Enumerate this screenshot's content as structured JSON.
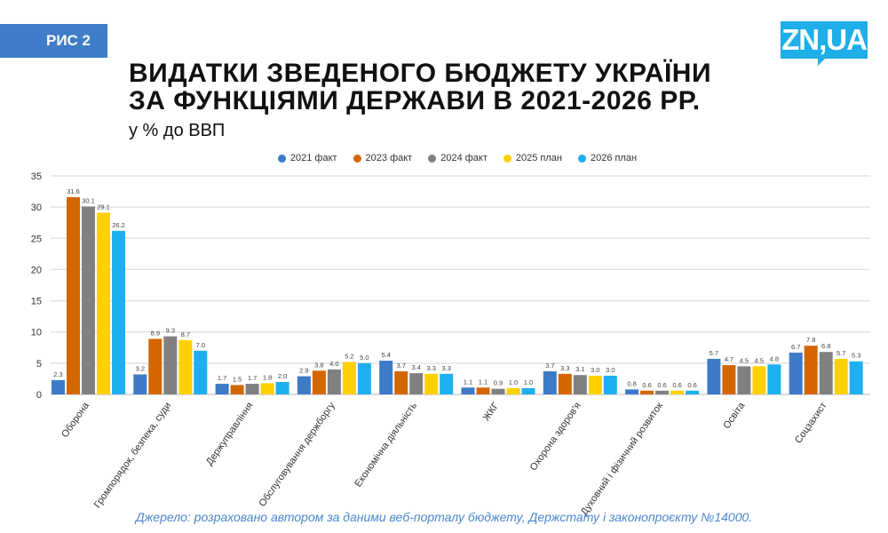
{
  "badge": "РИС 2",
  "logo": "ZN,UA",
  "title_line1": "ВИДАТКИ ЗВЕДЕНОГО БЮДЖЕТУ УКРАЇНИ",
  "title_line2": "ЗА ФУНКЦІЯМИ ДЕРЖАВИ В 2021-2026 РР.",
  "subtitle": "у % до ВВП",
  "source": "Джерело: розраховано автором за даними веб-порталу бюджету, Держстату і законопроєкту №14000.",
  "chart_data": {
    "type": "bar",
    "ylim": [
      0,
      35
    ],
    "yticks": [
      0,
      5,
      10,
      15,
      20,
      25,
      30,
      35
    ],
    "grid": true,
    "legend_position": "top",
    "categories": [
      "Оборона",
      "Громпорядок, безпека, суди",
      "Держуправління",
      "Обслуговування держборгу",
      "Економічна діяльність",
      "ЖКГ",
      "Охорона здоров'я",
      "Духовний і фізичний розвиток",
      "Освіта",
      "Соцзахист"
    ],
    "series": [
      {
        "name": "2021 факт",
        "color": "#3d7bc7",
        "values": [
          2.3,
          3.2,
          1.7,
          2.9,
          5.4,
          1.1,
          3.7,
          0.8,
          5.7,
          6.7
        ]
      },
      {
        "name": "2023 факт",
        "color": "#d46600",
        "values": [
          31.6,
          8.9,
          1.5,
          3.8,
          3.7,
          1.1,
          3.3,
          0.6,
          4.7,
          7.8
        ]
      },
      {
        "name": "2024 факт",
        "color": "#808080",
        "values": [
          30.1,
          9.3,
          1.7,
          4.0,
          3.4,
          0.9,
          3.1,
          0.6,
          4.5,
          6.8
        ]
      },
      {
        "name": "2025 план",
        "color": "#ffd000",
        "values": [
          29.1,
          8.7,
          1.8,
          5.2,
          3.3,
          1.0,
          3.0,
          0.6,
          4.5,
          5.7
        ]
      },
      {
        "name": "2026 план",
        "color": "#1eaff0",
        "values": [
          26.2,
          7.0,
          2.0,
          5.0,
          3.3,
          1.0,
          3.0,
          0.6,
          4.8,
          5.3
        ]
      }
    ]
  }
}
